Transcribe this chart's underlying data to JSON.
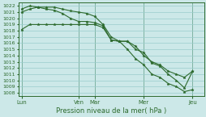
{
  "title": "",
  "xlabel": "Pression niveau de la mer( hPa )",
  "background_color": "#cce8e8",
  "grid_color": "#99cccc",
  "line_color": "#2d6a2d",
  "ylim": [
    1007.5,
    1022.5
  ],
  "yticks": [
    1008,
    1009,
    1010,
    1011,
    1012,
    1013,
    1014,
    1015,
    1016,
    1017,
    1018,
    1019,
    1020,
    1021,
    1022
  ],
  "x_day_labels": [
    "Lun",
    "Ven",
    "Mar",
    "Mer",
    "Jeu"
  ],
  "x_day_positions": [
    0.0,
    3.5,
    4.5,
    7.5,
    10.5
  ],
  "xlim": [
    -0.2,
    11.2
  ],
  "series1_x": [
    0,
    0.5,
    1.0,
    1.5,
    2.0,
    2.5,
    3.0,
    3.5,
    4.0,
    4.5,
    5.0,
    5.5,
    6.0,
    6.5,
    7.0,
    7.5,
    8.0,
    8.5,
    9.0,
    9.5,
    10.0,
    10.5
  ],
  "series1_y": [
    1021.0,
    1021.5,
    1021.8,
    1021.5,
    1021.3,
    1020.8,
    1020.0,
    1019.5,
    1019.5,
    1019.3,
    1018.8,
    1016.5,
    1016.3,
    1016.3,
    1015.0,
    1014.5,
    1012.8,
    1012.3,
    1011.0,
    1010.0,
    1008.8,
    1011.5
  ],
  "series2_x": [
    0,
    0.5,
    1.0,
    1.5,
    2.0,
    2.5,
    3.0,
    3.5,
    4.0,
    4.5,
    5.0,
    5.5,
    6.0,
    6.5,
    7.0,
    7.5,
    8.0,
    8.5,
    9.0,
    9.5,
    10.0,
    10.5
  ],
  "series2_y": [
    1021.5,
    1022.0,
    1021.8,
    1021.8,
    1021.8,
    1021.5,
    1021.2,
    1021.0,
    1020.8,
    1020.3,
    1019.0,
    1017.0,
    1016.3,
    1016.3,
    1015.5,
    1014.0,
    1013.0,
    1012.5,
    1011.5,
    1011.0,
    1010.5,
    1011.5
  ],
  "series3_x": [
    0,
    0.5,
    1.0,
    1.5,
    2.0,
    2.5,
    3.0,
    3.5,
    4.0,
    4.5,
    5.0,
    5.5,
    6.0,
    6.5,
    7.0,
    7.5,
    8.0,
    8.5,
    9.0,
    9.5,
    10.0,
    10.5
  ],
  "series3_y": [
    1018.2,
    1019.0,
    1019.0,
    1019.0,
    1019.0,
    1019.0,
    1019.0,
    1019.0,
    1019.0,
    1019.0,
    1018.5,
    1016.5,
    1016.3,
    1015.0,
    1013.5,
    1012.5,
    1011.0,
    1010.5,
    1009.5,
    1009.0,
    1008.2,
    1008.5
  ]
}
